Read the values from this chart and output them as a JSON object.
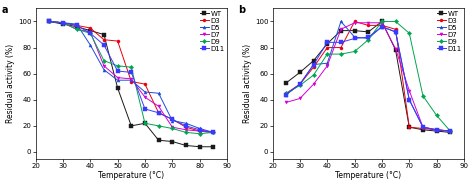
{
  "panel_a": {
    "title": "a",
    "xlabel": "Temperature (°C)",
    "ylabel": "Residual activity (%)",
    "xlim": [
      20,
      90
    ],
    "ylim": [
      -5,
      110
    ],
    "xticks": [
      20,
      30,
      40,
      50,
      60,
      70,
      80,
      90
    ],
    "yticks": [
      0,
      20,
      40,
      60,
      80,
      100
    ],
    "series": {
      "WT": {
        "x": [
          25,
          30,
          35,
          40,
          45,
          50,
          55,
          60,
          65,
          70,
          75,
          80,
          85
        ],
        "y": [
          100,
          98,
          96,
          93,
          90,
          49,
          20,
          22,
          9,
          8,
          5,
          4,
          4
        ],
        "color": "#1a1a1a",
        "marker": "s"
      },
      "D3": {
        "x": [
          25,
          30,
          35,
          40,
          45,
          50,
          55,
          60,
          65,
          70,
          75,
          80,
          85
        ],
        "y": [
          100,
          99,
          97,
          95,
          86,
          85,
          54,
          52,
          30,
          25,
          19,
          16,
          15
        ],
        "color": "#e8000b",
        "marker": "o"
      },
      "D5": {
        "x": [
          25,
          30,
          35,
          40,
          45,
          50,
          55,
          60,
          65,
          70,
          75,
          80,
          85
        ],
        "y": [
          100,
          99,
          98,
          82,
          63,
          55,
          55,
          46,
          45,
          24,
          22,
          18,
          15
        ],
        "color": "#1e4dd8",
        "marker": "^"
      },
      "D7": {
        "x": [
          25,
          30,
          35,
          40,
          45,
          50,
          55,
          60,
          65,
          70,
          75,
          80,
          85
        ],
        "y": [
          100,
          99,
          94,
          92,
          66,
          57,
          56,
          42,
          35,
          19,
          17,
          16,
          15
        ],
        "color": "#d400d4",
        "marker": "v"
      },
      "D9": {
        "x": [
          25,
          30,
          35,
          40,
          45,
          50,
          55,
          60,
          65,
          70,
          75,
          80,
          85
        ],
        "y": [
          100,
          99,
          94,
          91,
          70,
          66,
          65,
          22,
          20,
          18,
          15,
          14,
          15
        ],
        "color": "#00a550",
        "marker": "D"
      },
      "D11": {
        "x": [
          25,
          30,
          35,
          40,
          45,
          50,
          55,
          60,
          65,
          70,
          75,
          80,
          85
        ],
        "y": [
          100,
          99,
          97,
          91,
          82,
          62,
          61,
          33,
          30,
          25,
          20,
          17,
          15
        ],
        "color": "#3a3aff",
        "marker": "s"
      }
    }
  },
  "panel_b": {
    "title": "b",
    "xlabel": "Temperature (°C)",
    "ylabel": "Residual activity (%)",
    "xlim": [
      20,
      90
    ],
    "ylim": [
      -5,
      110
    ],
    "xticks": [
      20,
      30,
      40,
      50,
      60,
      70,
      80,
      90
    ],
    "yticks": [
      0,
      20,
      40,
      60,
      80,
      100
    ],
    "series": {
      "WT": {
        "x": [
          25,
          30,
          35,
          40,
          45,
          50,
          55,
          60,
          65,
          70,
          75,
          80,
          85
        ],
        "y": [
          53,
          61,
          70,
          83,
          93,
          93,
          92,
          100,
          78,
          19,
          17,
          16,
          15
        ],
        "color": "#1a1a1a",
        "marker": "s"
      },
      "D3": {
        "x": [
          25,
          30,
          35,
          40,
          45,
          50,
          55,
          60,
          65,
          70,
          75,
          80,
          85
        ],
        "y": [
          45,
          52,
          65,
          80,
          80,
          100,
          97,
          97,
          94,
          19,
          18,
          17,
          16
        ],
        "color": "#e8000b",
        "marker": "o"
      },
      "D5": {
        "x": [
          25,
          30,
          35,
          40,
          45,
          50,
          55,
          60,
          65,
          70,
          75,
          80,
          85
        ],
        "y": [
          44,
          52,
          67,
          68,
          100,
          88,
          87,
          96,
          92,
          40,
          19,
          17,
          16
        ],
        "color": "#1e4dd8",
        "marker": "^"
      },
      "D7": {
        "x": [
          25,
          30,
          35,
          40,
          45,
          50,
          55,
          60,
          65,
          70,
          75,
          80,
          85
        ],
        "y": [
          38,
          41,
          52,
          66,
          94,
          99,
          99,
          99,
          79,
          47,
          19,
          17,
          16
        ],
        "color": "#d400d4",
        "marker": "v"
      },
      "D9": {
        "x": [
          25,
          30,
          35,
          40,
          45,
          50,
          55,
          60,
          65,
          70,
          75,
          80,
          85
        ],
        "y": [
          45,
          51,
          59,
          75,
          75,
          77,
          86,
          100,
          100,
          91,
          43,
          28,
          16
        ],
        "color": "#00a550",
        "marker": "D"
      },
      "D11": {
        "x": [
          25,
          30,
          35,
          40,
          45,
          50,
          55,
          60,
          65,
          70,
          75,
          80,
          85
        ],
        "y": [
          44,
          52,
          67,
          84,
          84,
          87,
          88,
          96,
          92,
          40,
          19,
          17,
          16
        ],
        "color": "#3a3aff",
        "marker": "s"
      }
    }
  },
  "legend_order": [
    "WT",
    "D3",
    "D5",
    "D7",
    "D9",
    "D11"
  ],
  "fontsize": 5,
  "label_fontsize": 5.5,
  "panel_label_fontsize": 7,
  "marker_size": 2.2,
  "linewidth": 0.7
}
